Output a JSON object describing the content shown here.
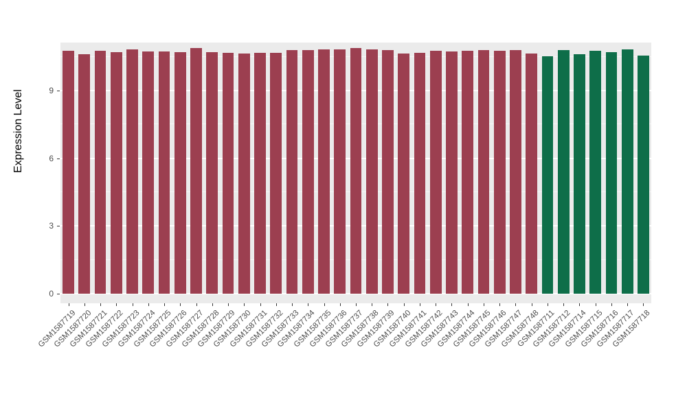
{
  "chart_data": {
    "type": "bar",
    "title": "",
    "xlabel": "",
    "ylabel": "Expression Level",
    "yticks": [
      0,
      3,
      6,
      9
    ],
    "yticks_minor": [
      1.5,
      4.5,
      7.5,
      10.5
    ],
    "ylim": [
      0,
      11.13
    ],
    "grid": true,
    "legend": "none",
    "panel_bg": "#EBEBEB",
    "gridline_color": "#FFFFFF",
    "series": [
      {
        "name": "group-red",
        "color": "#9C3F50",
        "categories": [
          "GSM1587719",
          "GSM1587720",
          "GSM1587721",
          "GSM1587722",
          "GSM1587723",
          "GSM1587724",
          "GSM1587725",
          "GSM1587726",
          "GSM1587727",
          "GSM1587728",
          "GSM1587729",
          "GSM1587730",
          "GSM1587731",
          "GSM1587732",
          "GSM1587733",
          "GSM1587734",
          "GSM1587735",
          "GSM1587736",
          "GSM1587737",
          "GSM1587738",
          "GSM1587739",
          "GSM1587740",
          "GSM1587741",
          "GSM1587742",
          "GSM1587743",
          "GSM1587744",
          "GSM1587745",
          "GSM1587746",
          "GSM1587747",
          "GSM1587748"
        ],
        "values": [
          10.78,
          10.62,
          10.76,
          10.7,
          10.82,
          10.72,
          10.74,
          10.7,
          10.9,
          10.7,
          10.66,
          10.64,
          10.66,
          10.68,
          10.8,
          10.8,
          10.84,
          10.84,
          10.88,
          10.82,
          10.8,
          10.64,
          10.66,
          10.76,
          10.72,
          10.76,
          10.8,
          10.78,
          10.8,
          10.64
        ]
      },
      {
        "name": "group-green",
        "color": "#0E6E49",
        "categories": [
          "GSM1587711",
          "GSM1587712",
          "GSM1587714",
          "GSM1587715",
          "GSM1587716",
          "GSM1587717",
          "GSM1587718"
        ],
        "values": [
          10.52,
          10.8,
          10.62,
          10.76,
          10.7,
          10.84,
          10.56
        ]
      }
    ]
  }
}
